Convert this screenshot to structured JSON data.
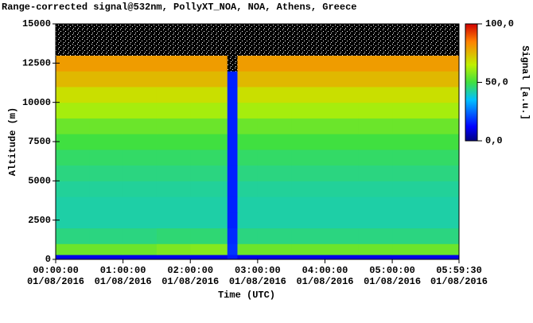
{
  "chart_data": {
    "type": "heatmap",
    "title": "Range-corrected signal@532nm, PollyXT_NOA, NOA, Athens, Greece",
    "x_label": "Time (UTC)",
    "y_label": "Altitude (m)",
    "colorbar_label": "Signal [a.u.]",
    "xlim": [
      0,
      5.99167
    ],
    "xticks": [
      {
        "value": 0,
        "label": "00:00:00\n01/08/2016"
      },
      {
        "value": 1,
        "label": "01:00:00\n01/08/2016"
      },
      {
        "value": 2,
        "label": "02:00:00\n01/08/2016"
      },
      {
        "value": 3,
        "label": "03:00:00\n01/08/2016"
      },
      {
        "value": 4,
        "label": "04:00:00\n01/08/2016"
      },
      {
        "value": 5,
        "label": "05:00:00\n01/08/2016"
      },
      {
        "value": 5.99167,
        "label": "05:59:30\n01/08/2016"
      }
    ],
    "ylim": [
      0,
      15000
    ],
    "yticks": [
      0,
      2500,
      5000,
      7500,
      10000,
      12500,
      15000
    ],
    "zlim": [
      0,
      100
    ],
    "zticks": [
      {
        "value": 0,
        "label": "0,0"
      },
      {
        "value": 50,
        "label": "50,0"
      },
      {
        "value": 100,
        "label": "100,0"
      }
    ],
    "x_edges": [
      0,
      0.5,
      1,
      1.5,
      2,
      2.5,
      2.55,
      2.7,
      3,
      3.5,
      4,
      4.5,
      5,
      5.5,
      5.99167
    ],
    "y_edges": [
      0,
      300,
      1000,
      2000,
      3000,
      4000,
      5000,
      6000,
      7000,
      8000,
      9000,
      10000,
      11000,
      12000,
      13000,
      15000
    ],
    "z": [
      [
        10,
        10,
        10,
        10,
        10,
        10,
        15,
        10,
        10,
        10,
        10,
        10,
        10,
        10
      ],
      [
        55,
        55,
        55,
        57,
        58,
        58,
        18,
        55,
        55,
        55,
        55,
        55,
        55,
        55
      ],
      [
        45,
        45,
        45,
        46,
        46,
        46,
        17,
        45,
        45,
        45,
        45,
        45,
        45,
        45
      ],
      [
        42,
        42,
        42,
        42,
        42,
        42,
        16,
        42,
        42,
        42,
        42,
        42,
        42,
        42
      ],
      [
        42,
        42,
        42,
        42,
        42,
        42,
        16,
        42,
        42,
        42,
        42,
        42,
        42,
        42
      ],
      [
        43,
        43,
        43,
        43,
        43,
        43,
        16,
        43,
        43,
        43,
        43,
        43,
        43,
        43
      ],
      [
        45,
        45,
        45,
        45,
        45,
        45,
        16,
        45,
        45,
        45,
        45,
        45,
        45,
        45
      ],
      [
        47,
        47,
        47,
        47,
        47,
        47,
        16,
        47,
        47,
        47,
        47,
        47,
        47,
        47
      ],
      [
        50,
        50,
        50,
        50,
        50,
        50,
        16,
        50,
        50,
        50,
        50,
        50,
        50,
        50
      ],
      [
        55,
        55,
        55,
        55,
        55,
        55,
        16,
        55,
        55,
        55,
        55,
        55,
        55,
        55
      ],
      [
        62,
        62,
        62,
        62,
        62,
        62,
        16,
        62,
        62,
        62,
        62,
        62,
        62,
        62
      ],
      [
        68,
        68,
        68,
        68,
        68,
        68,
        16,
        68,
        68,
        68,
        68,
        68,
        68,
        68
      ],
      [
        75,
        75,
        75,
        75,
        75,
        75,
        16,
        75,
        75,
        75,
        75,
        75,
        75,
        75
      ],
      [
        80,
        80,
        80,
        80,
        80,
        80,
        null,
        80,
        80,
        80,
        80,
        80,
        80,
        80
      ],
      [
        null,
        null,
        null,
        null,
        null,
        null,
        null,
        null,
        null,
        null,
        null,
        null,
        null,
        null
      ]
    ]
  }
}
